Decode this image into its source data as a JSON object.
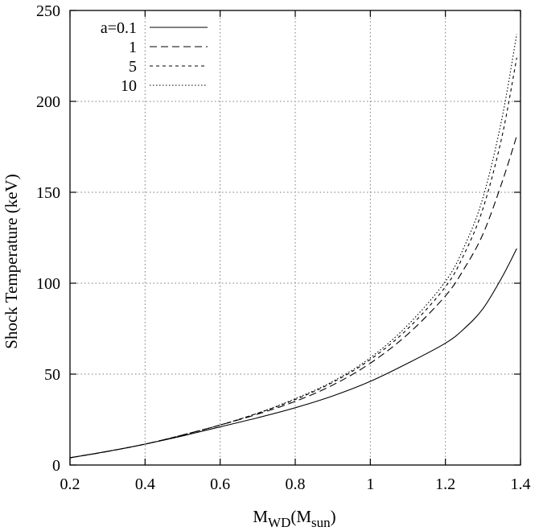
{
  "chart_data": {
    "type": "line",
    "title": "",
    "xlabel": "M",
    "xlabel_sub1": "WD",
    "xlabel_mid": "(M",
    "xlabel_sub2": "sun",
    "xlabel_end": ")",
    "ylabel": "Shock Temperature  (keV)",
    "xlim": [
      0.2,
      1.4
    ],
    "ylim": [
      0,
      250
    ],
    "xticks": [
      "0.2",
      "0.4",
      "0.6",
      "0.8",
      "1",
      "1.2",
      "1.4"
    ],
    "yticks": [
      "0",
      "50",
      "100",
      "150",
      "200",
      "250"
    ],
    "grid": true,
    "legend_position": "top-left",
    "series": [
      {
        "name": "a=0.1",
        "style": "solid",
        "x": [
          0.2,
          0.3,
          0.4,
          0.5,
          0.6,
          0.7,
          0.8,
          0.9,
          1.0,
          1.1,
          1.2,
          1.25,
          1.3,
          1.35,
          1.39
        ],
        "y": [
          4.0,
          7.5,
          11.5,
          16.0,
          21.0,
          26.0,
          31.5,
          38.0,
          46.0,
          56.0,
          67.0,
          75.0,
          86.0,
          103.0,
          119.0
        ]
      },
      {
        "name": "1",
        "style": "dashed",
        "x": [
          0.2,
          0.3,
          0.4,
          0.5,
          0.6,
          0.7,
          0.8,
          0.9,
          1.0,
          1.1,
          1.2,
          1.25,
          1.3,
          1.35,
          1.39
        ],
        "y": [
          4.0,
          7.5,
          11.5,
          16.5,
          22.0,
          28.0,
          35.0,
          44.0,
          56.0,
          72.0,
          93.0,
          108.0,
          127.0,
          155.0,
          181.0
        ]
      },
      {
        "name": "5",
        "style": "short-dashed",
        "x": [
          0.2,
          0.3,
          0.4,
          0.5,
          0.6,
          0.7,
          0.8,
          0.9,
          1.0,
          1.1,
          1.2,
          1.25,
          1.3,
          1.35,
          1.39
        ],
        "y": [
          4.0,
          7.5,
          11.5,
          16.5,
          22.0,
          28.5,
          36.0,
          45.5,
          58.0,
          75.0,
          98.0,
          116.0,
          141.0,
          180.0,
          224.0
        ]
      },
      {
        "name": "10",
        "style": "dotted",
        "x": [
          0.2,
          0.3,
          0.4,
          0.5,
          0.6,
          0.7,
          0.8,
          0.9,
          1.0,
          1.1,
          1.2,
          1.25,
          1.3,
          1.35,
          1.39
        ],
        "y": [
          4.0,
          7.5,
          11.5,
          16.5,
          22.0,
          28.5,
          36.5,
          46.0,
          59.0,
          77.0,
          101.0,
          120.0,
          147.0,
          190.0,
          237.0
        ]
      }
    ]
  }
}
